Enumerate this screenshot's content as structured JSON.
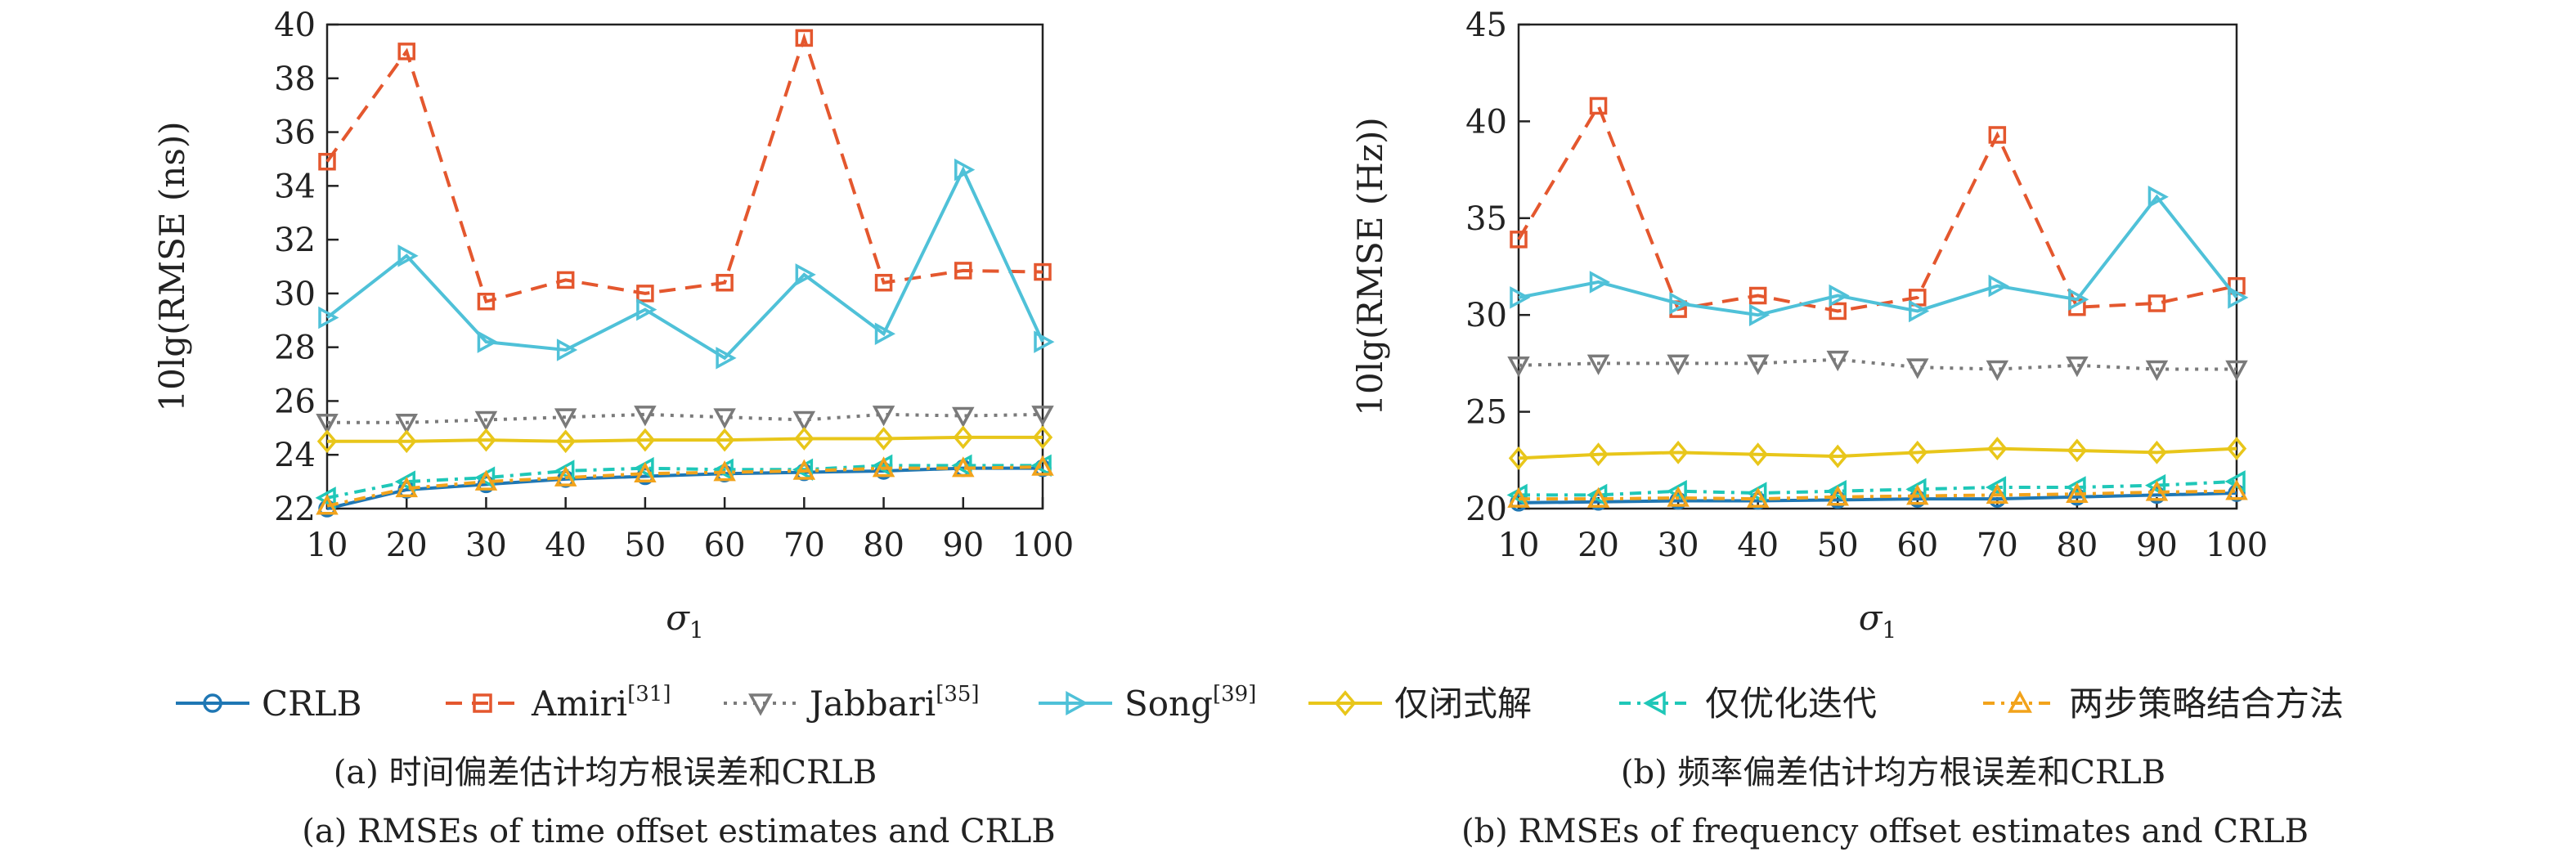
{
  "legend": [
    {
      "key": "crlb",
      "label": "CRLB",
      "sup": "",
      "color": "#1f77b4",
      "marker": "circle",
      "dash": "solid"
    },
    {
      "key": "amiri",
      "label": "Amiri",
      "sup": "[31]",
      "color": "#e4572e",
      "marker": "square",
      "dash": "dashed"
    },
    {
      "key": "jabbari",
      "label": "Jabbari",
      "sup": "[35]",
      "color": "#7a7a7a",
      "marker": "triangle-down",
      "dash": "dotted"
    },
    {
      "key": "song",
      "label": "Song",
      "sup": "[39]",
      "color": "#4fc1d8",
      "marker": "triangle-right",
      "dash": "solid"
    },
    {
      "key": "closed",
      "label": "仅闭式解",
      "sup": "",
      "color": "#e8c61a",
      "marker": "diamond",
      "dash": "solid"
    },
    {
      "key": "iter",
      "label": "仅优化迭代",
      "sup": "",
      "color": "#1fc7b8",
      "marker": "triangle-left",
      "dash": "dashdot"
    },
    {
      "key": "twostep",
      "label": "两步策略结合方法",
      "sup": "",
      "color": "#f2a31b",
      "marker": "triangle-up",
      "dash": "dashdot"
    }
  ],
  "chart_data": [
    {
      "type": "line",
      "caption_cn": "(a) 时间偏差估计均方根误差和CRLB",
      "caption_en": "(a) RMSEs of time offset estimates and CRLB",
      "xlabel": "σ",
      "xlabel_sub": "1",
      "ylabel": "10lg(RMSE (ns))",
      "x": [
        10,
        20,
        30,
        40,
        50,
        60,
        70,
        80,
        90,
        100
      ],
      "xlim": [
        10,
        100
      ],
      "ylim": [
        22,
        40
      ],
      "yticks": [
        22,
        24,
        26,
        28,
        30,
        32,
        34,
        36,
        38,
        40
      ],
      "grid": false,
      "series": [
        {
          "name": "CRLB",
          "values": [
            22.0,
            22.7,
            22.9,
            23.1,
            23.2,
            23.3,
            23.35,
            23.4,
            23.5,
            23.5
          ]
        },
        {
          "name": "Amiri",
          "values": [
            34.9,
            39.0,
            29.7,
            30.5,
            30.0,
            30.4,
            39.5,
            30.4,
            30.85,
            30.8
          ]
        },
        {
          "name": "Jabbari",
          "values": [
            25.2,
            25.2,
            25.3,
            25.4,
            25.5,
            25.4,
            25.3,
            25.5,
            25.45,
            25.5
          ]
        },
        {
          "name": "Song",
          "values": [
            29.1,
            31.4,
            28.2,
            27.9,
            29.4,
            27.6,
            30.7,
            28.5,
            34.6,
            28.2
          ]
        },
        {
          "name": "仅闭式解",
          "values": [
            24.5,
            24.5,
            24.55,
            24.5,
            24.55,
            24.55,
            24.6,
            24.6,
            24.65,
            24.65
          ]
        },
        {
          "name": "仅优化迭代",
          "values": [
            22.4,
            23.0,
            23.15,
            23.4,
            23.5,
            23.45,
            23.45,
            23.6,
            23.6,
            23.6
          ]
        },
        {
          "name": "两步策略结合方法",
          "values": [
            22.1,
            22.75,
            23.0,
            23.15,
            23.3,
            23.35,
            23.4,
            23.5,
            23.5,
            23.55
          ]
        }
      ]
    },
    {
      "type": "line",
      "caption_cn": "(b) 频率偏差估计均方根误差和CRLB",
      "caption_en": "(b) RMSEs of frequency offset estimates and CRLB",
      "xlabel": "σ",
      "xlabel_sub": "1",
      "ylabel": "10lg(RMSE (Hz))",
      "x": [
        10,
        20,
        30,
        40,
        50,
        60,
        70,
        80,
        90,
        100
      ],
      "xlim": [
        10,
        100
      ],
      "ylim": [
        20,
        45
      ],
      "yticks": [
        20,
        25,
        30,
        35,
        40,
        45
      ],
      "grid": false,
      "series": [
        {
          "name": "CRLB",
          "values": [
            20.3,
            20.35,
            20.4,
            20.4,
            20.45,
            20.5,
            20.5,
            20.6,
            20.7,
            20.8
          ]
        },
        {
          "name": "Amiri",
          "values": [
            33.9,
            40.8,
            30.3,
            31.0,
            30.2,
            30.9,
            39.3,
            30.4,
            30.6,
            31.5
          ]
        },
        {
          "name": "Jabbari",
          "values": [
            27.4,
            27.5,
            27.5,
            27.5,
            27.7,
            27.3,
            27.2,
            27.4,
            27.2,
            27.2
          ]
        },
        {
          "name": "Song",
          "values": [
            30.9,
            31.7,
            30.6,
            30.0,
            31.0,
            30.2,
            31.5,
            30.8,
            36.1,
            30.9
          ]
        },
        {
          "name": "仅闭式解",
          "values": [
            22.6,
            22.8,
            22.9,
            22.8,
            22.7,
            22.9,
            23.1,
            23.0,
            22.9,
            23.1
          ]
        },
        {
          "name": "仅优化迭代",
          "values": [
            20.7,
            20.7,
            20.9,
            20.8,
            20.9,
            21.0,
            21.1,
            21.1,
            21.2,
            21.4
          ]
        },
        {
          "name": "两步策略结合方法",
          "values": [
            20.5,
            20.5,
            20.55,
            20.5,
            20.6,
            20.65,
            20.7,
            20.75,
            20.85,
            20.9
          ]
        }
      ]
    }
  ]
}
